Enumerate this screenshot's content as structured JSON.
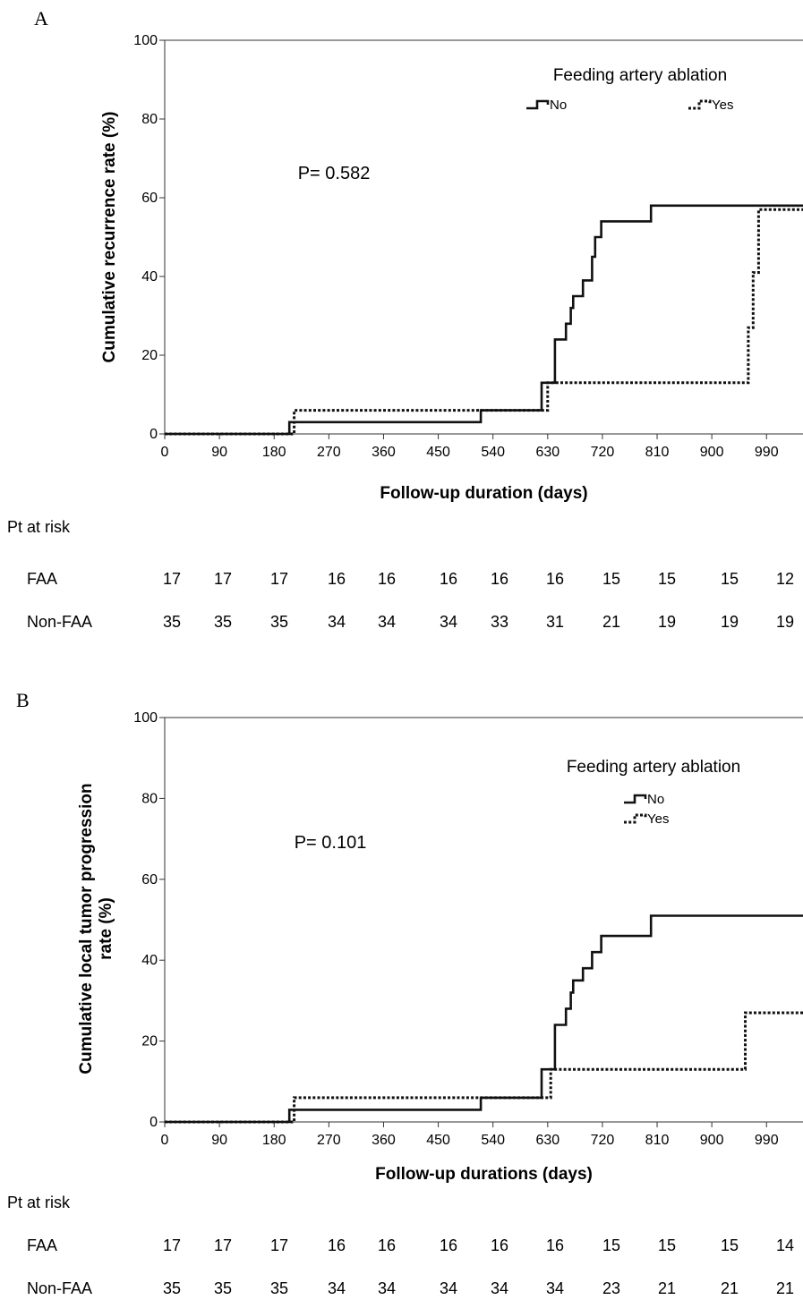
{
  "chart_data": [
    {
      "type": "line",
      "panel_label": "A",
      "ylabel": "Cumulative recurrence rate (%)",
      "xlabel": "Follow-up duration (days)",
      "xticks": [
        "0",
        "90",
        "180",
        "270",
        "360",
        "450",
        "540",
        "630",
        "720",
        "810",
        "900",
        "990"
      ],
      "yticks": [
        "0",
        "20",
        "40",
        "60",
        "80",
        "100"
      ],
      "xlim": [
        0,
        1050
      ],
      "ylim": [
        0,
        100
      ],
      "legend_title": "Feeding artery ablation",
      "legend_placement": "top-right",
      "pvalue": "P= 0.582",
      "series": [
        {
          "name": "No",
          "style": "solid",
          "points": [
            [
              0,
              0
            ],
            [
              205,
              0
            ],
            [
              205,
              3
            ],
            [
              520,
              3
            ],
            [
              520,
              6
            ],
            [
              620,
              6
            ],
            [
              620,
              13
            ],
            [
              642,
              13
            ],
            [
              642,
              24
            ],
            [
              660,
              24
            ],
            [
              660,
              28
            ],
            [
              668,
              28
            ],
            [
              668,
              32
            ],
            [
              672,
              32
            ],
            [
              672,
              35
            ],
            [
              688,
              35
            ],
            [
              688,
              39
            ],
            [
              703,
              39
            ],
            [
              703,
              45
            ],
            [
              708,
              45
            ],
            [
              708,
              50
            ],
            [
              718,
              50
            ],
            [
              718,
              54
            ],
            [
              800,
              54
            ],
            [
              800,
              58
            ],
            [
              1050,
              58
            ]
          ]
        },
        {
          "name": "Yes",
          "style": "dotted",
          "points": [
            [
              0,
              0
            ],
            [
              213,
              0
            ],
            [
              213,
              6
            ],
            [
              630,
              6
            ],
            [
              630,
              13
            ],
            [
              960,
              13
            ],
            [
              960,
              27
            ],
            [
              968,
              27
            ],
            [
              968,
              41
            ],
            [
              977,
              41
            ],
            [
              977,
              57
            ],
            [
              1050,
              57
            ]
          ]
        }
      ],
      "risk_table": {
        "title": "Pt at risk",
        "rows": [
          {
            "label": "FAA",
            "values": [
              "17",
              "17",
              "17",
              "16",
              "16",
              "16",
              "16",
              "16",
              "15",
              "15",
              "15",
              "12"
            ]
          },
          {
            "label": "Non-FAA",
            "values": [
              "35",
              "35",
              "35",
              "34",
              "34",
              "34",
              "33",
              "31",
              "21",
              "19",
              "19",
              "19"
            ]
          }
        ]
      }
    },
    {
      "type": "line",
      "panel_label": "B",
      "ylabel": "Cumulative local tumor progression rate (%)",
      "ylabel_lines": [
        "Cumulative local tumor progression",
        "rate (%)"
      ],
      "xlabel": "Follow-up durations (days)",
      "xticks": [
        "0",
        "90",
        "180",
        "270",
        "360",
        "450",
        "540",
        "630",
        "720",
        "810",
        "900",
        "990"
      ],
      "yticks": [
        "0",
        "20",
        "40",
        "60",
        "80",
        "100"
      ],
      "xlim": [
        0,
        1050
      ],
      "ylim": [
        0,
        100
      ],
      "legend_title": "Feeding artery ablation",
      "legend_placement": "top-right",
      "pvalue": "P= 0.101",
      "series": [
        {
          "name": "No",
          "style": "solid",
          "points": [
            [
              0,
              0
            ],
            [
              205,
              0
            ],
            [
              205,
              3
            ],
            [
              520,
              3
            ],
            [
              520,
              6
            ],
            [
              620,
              6
            ],
            [
              620,
              13
            ],
            [
              642,
              13
            ],
            [
              642,
              24
            ],
            [
              660,
              24
            ],
            [
              660,
              28
            ],
            [
              668,
              28
            ],
            [
              668,
              32
            ],
            [
              672,
              32
            ],
            [
              672,
              35
            ],
            [
              688,
              35
            ],
            [
              688,
              38
            ],
            [
              703,
              38
            ],
            [
              703,
              42
            ],
            [
              718,
              42
            ],
            [
              718,
              46
            ],
            [
              800,
              46
            ],
            [
              800,
              51
            ],
            [
              1050,
              51
            ]
          ]
        },
        {
          "name": "Yes",
          "style": "dotted",
          "points": [
            [
              0,
              0
            ],
            [
              213,
              0
            ],
            [
              213,
              6
            ],
            [
              635,
              6
            ],
            [
              635,
              13
            ],
            [
              955,
              13
            ],
            [
              955,
              27
            ],
            [
              1050,
              27
            ]
          ]
        }
      ],
      "risk_table": {
        "title": "Pt at risk",
        "rows": [
          {
            "label": "FAA",
            "values": [
              "17",
              "17",
              "17",
              "16",
              "16",
              "16",
              "16",
              "16",
              "15",
              "15",
              "15",
              "14"
            ]
          },
          {
            "label": "Non-FAA",
            "values": [
              "35",
              "35",
              "35",
              "34",
              "34",
              "34",
              "34",
              "34",
              "23",
              "21",
              "21",
              "21"
            ]
          }
        ]
      }
    }
  ]
}
